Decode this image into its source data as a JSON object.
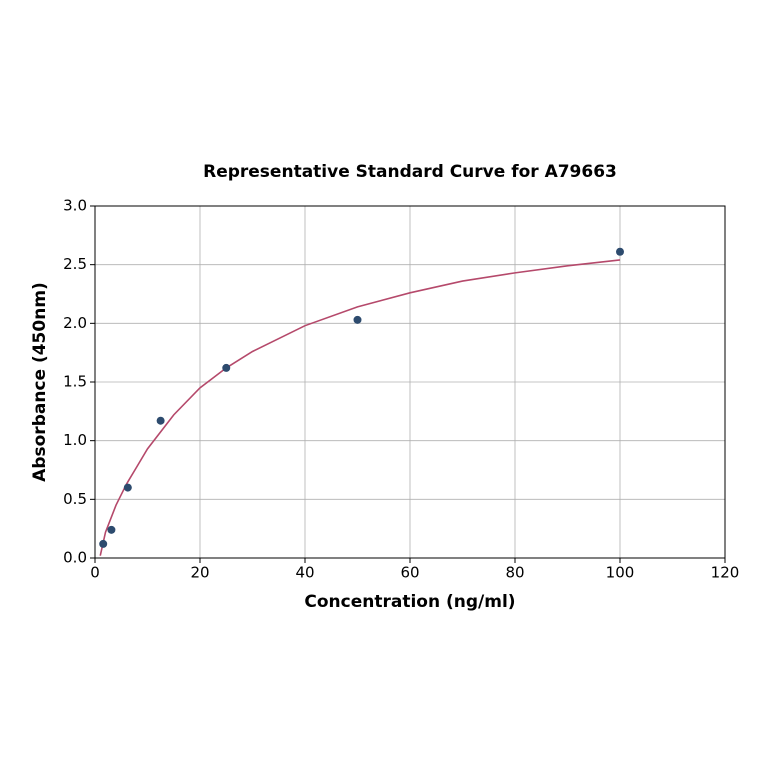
{
  "chart_data": {
    "type": "scatter",
    "title": "Representative Standard Curve for A79663",
    "xlabel": "Concentration (ng/ml)",
    "ylabel": "Absorbance (450nm)",
    "x": [
      1.5625,
      3.125,
      6.25,
      12.5,
      25,
      50,
      100
    ],
    "values": [
      0.12,
      0.24,
      0.6,
      1.17,
      1.62,
      2.03,
      2.61
    ],
    "color": "#2d4b6e",
    "fit": {
      "color": "#b5496b",
      "x": [
        1,
        2,
        4,
        6,
        8,
        10,
        15,
        20,
        25,
        30,
        40,
        50,
        60,
        70,
        80,
        90,
        100
      ],
      "values": [
        0.02,
        0.22,
        0.45,
        0.63,
        0.78,
        0.93,
        1.22,
        1.45,
        1.62,
        1.76,
        1.98,
        2.14,
        2.26,
        2.36,
        2.43,
        2.49,
        2.54
      ]
    },
    "xlim": [
      0,
      120
    ],
    "xticks": [
      0,
      20,
      40,
      60,
      80,
      100,
      120
    ],
    "ylim": [
      0,
      3
    ],
    "yticks": [
      {
        "value": 0,
        "label": "0.0"
      },
      0.5,
      {
        "value": 1,
        "label": "1.0"
      },
      1.5,
      {
        "value": 2,
        "label": "2.0"
      },
      2.5,
      {
        "value": 3,
        "label": "3.0"
      }
    ],
    "grid": true
  }
}
